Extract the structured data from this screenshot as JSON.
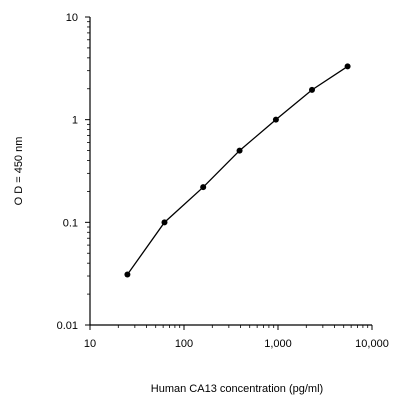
{
  "chart_data": {
    "type": "line",
    "xlabel": "Human CA13 concentration (pg/ml)",
    "ylabel": "O D = 450 nm",
    "x_scale": "log",
    "y_scale": "log",
    "xlim": [
      10,
      10000
    ],
    "ylim": [
      0.01,
      10
    ],
    "x_ticks": [
      "10",
      "100",
      "1,000",
      "10,000"
    ],
    "x_tick_values": [
      10,
      100,
      1000,
      10000
    ],
    "y_ticks": [
      "10",
      "1",
      "0.1",
      "0.01"
    ],
    "y_tick_values": [
      10,
      1,
      0.1,
      0.01
    ],
    "grid": false,
    "series": [
      {
        "x": [
          25,
          62,
          160,
          390,
          950,
          2300,
          5500
        ],
        "y": [
          0.031,
          0.1,
          0.22,
          0.5,
          1.0,
          1.95,
          3.3
        ]
      }
    ],
    "colors": {
      "line": "#000000",
      "marker": "#000000",
      "axis": "#000000"
    }
  }
}
